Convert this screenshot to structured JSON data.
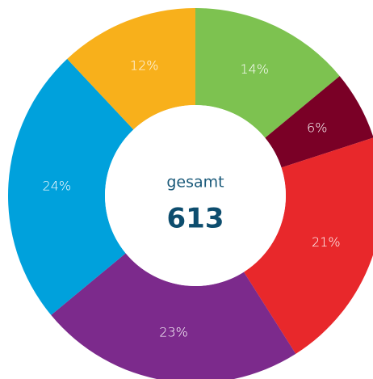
{
  "chart_data": {
    "type": "donut",
    "values": [
      14,
      6,
      21,
      23,
      24,
      12
    ],
    "value_labels": [
      "14%",
      "6%",
      "21%",
      "23%",
      "24%",
      "12%"
    ],
    "colors": [
      "#7dc250",
      "#7a0026",
      "#e8282b",
      "#7c2a8c",
      "#00a1dc",
      "#f8b01b"
    ],
    "center_label": "gesamt",
    "total": 613
  }
}
